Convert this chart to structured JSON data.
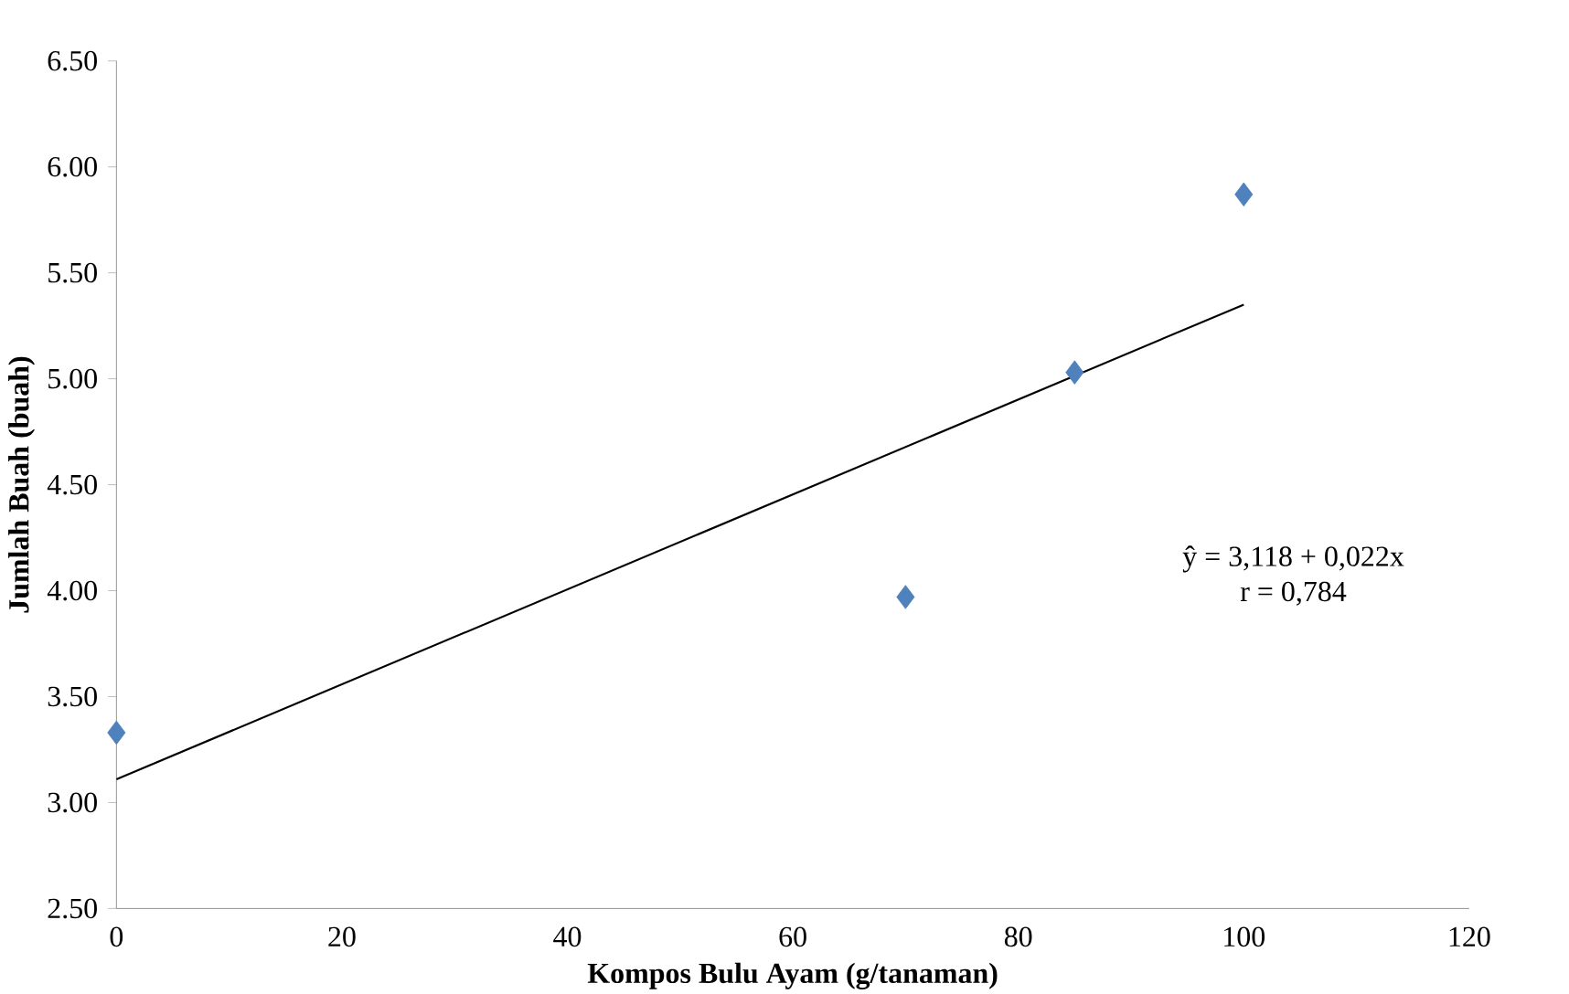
{
  "chart_data": {
    "type": "scatter",
    "xlabel": "Kompos Bulu Ayam (g/tanaman)",
    "ylabel": "Jumlah Buah (buah)",
    "series": [
      {
        "color": "#4f81bd",
        "x": [
          0,
          70,
          85,
          100
        ],
        "values": [
          3.33,
          3.97,
          5.03,
          5.87
        ],
        "marker": "diamond"
      },
      {
        "type": "line",
        "color": "#000000",
        "x": [
          0,
          100
        ],
        "values": [
          3.11,
          5.35
        ],
        "marker": "none"
      }
    ],
    "annotations": [
      "ŷ = 3,118 + 0,022x",
      "r = 0,784"
    ],
    "xlim": [
      0,
      120
    ],
    "xticks": [
      0,
      20,
      40,
      60,
      80,
      100,
      120
    ],
    "ylim": [
      2.5,
      6.5
    ],
    "yticks": [
      {
        "value": 2.5,
        "label": "2.50"
      },
      {
        "value": 3.0,
        "label": "3.00"
      },
      {
        "value": 3.5,
        "label": "3.50"
      },
      {
        "value": 4.0,
        "label": "4.00"
      },
      {
        "value": 4.5,
        "label": "4.50"
      },
      {
        "value": 5.0,
        "label": "5.00"
      },
      {
        "value": 5.5,
        "label": "5.50"
      },
      {
        "value": 6.0,
        "label": "6.00"
      },
      {
        "value": 6.5,
        "label": "6.50"
      }
    ],
    "grid": false
  }
}
